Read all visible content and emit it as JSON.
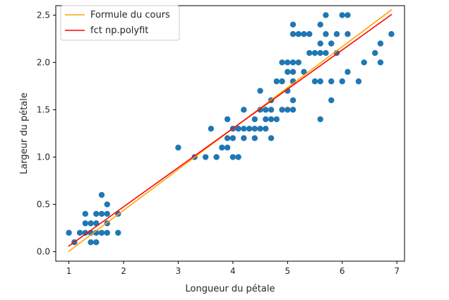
{
  "chart_data": {
    "type": "scatter",
    "xlabel": "Longueur du pétale",
    "ylabel": "Largeur du pétale",
    "xlim": [
      0.76,
      7.14
    ],
    "ylim": [
      -0.1,
      2.6
    ],
    "xticks": [
      1,
      2,
      3,
      4,
      5,
      6,
      7
    ],
    "yticks": [
      0.0,
      0.5,
      1.0,
      1.5,
      2.0,
      2.5
    ],
    "xtick_labels": [
      "1",
      "2",
      "3",
      "4",
      "5",
      "6",
      "7"
    ],
    "ytick_labels": [
      "0.0",
      "0.5",
      "1.0",
      "1.5",
      "2.0",
      "2.5"
    ],
    "grid": false,
    "legend_position": "top-left",
    "colors": {
      "scatter": "#1f77b4",
      "cours": "#ffa500",
      "polyfit": "#ff0000"
    },
    "scatter": {
      "points": [
        [
          1.0,
          0.2
        ],
        [
          1.1,
          0.1
        ],
        [
          1.2,
          0.2
        ],
        [
          1.3,
          0.2
        ],
        [
          1.3,
          0.3
        ],
        [
          1.3,
          0.4
        ],
        [
          1.4,
          0.1
        ],
        [
          1.4,
          0.2
        ],
        [
          1.4,
          0.3
        ],
        [
          1.5,
          0.1
        ],
        [
          1.5,
          0.2
        ],
        [
          1.5,
          0.3
        ],
        [
          1.5,
          0.4
        ],
        [
          1.6,
          0.2
        ],
        [
          1.6,
          0.4
        ],
        [
          1.6,
          0.6
        ],
        [
          1.7,
          0.2
        ],
        [
          1.7,
          0.3
        ],
        [
          1.7,
          0.4
        ],
        [
          1.7,
          0.5
        ],
        [
          1.9,
          0.2
        ],
        [
          1.9,
          0.4
        ],
        [
          3.0,
          1.1
        ],
        [
          3.3,
          1.0
        ],
        [
          3.5,
          1.0
        ],
        [
          3.6,
          1.3
        ],
        [
          3.7,
          1.0
        ],
        [
          3.8,
          1.1
        ],
        [
          3.9,
          1.1
        ],
        [
          3.9,
          1.2
        ],
        [
          3.9,
          1.4
        ],
        [
          4.0,
          1.0
        ],
        [
          4.0,
          1.2
        ],
        [
          4.0,
          1.3
        ],
        [
          4.1,
          1.0
        ],
        [
          4.1,
          1.3
        ],
        [
          4.2,
          1.2
        ],
        [
          4.2,
          1.3
        ],
        [
          4.2,
          1.5
        ],
        [
          4.3,
          1.3
        ],
        [
          4.4,
          1.2
        ],
        [
          4.4,
          1.3
        ],
        [
          4.4,
          1.4
        ],
        [
          4.5,
          1.3
        ],
        [
          4.5,
          1.5
        ],
        [
          4.5,
          1.7
        ],
        [
          4.6,
          1.3
        ],
        [
          4.6,
          1.4
        ],
        [
          4.6,
          1.5
        ],
        [
          4.7,
          1.2
        ],
        [
          4.7,
          1.4
        ],
        [
          4.7,
          1.5
        ],
        [
          4.7,
          1.6
        ],
        [
          4.8,
          1.4
        ],
        [
          4.8,
          1.8
        ],
        [
          4.9,
          1.5
        ],
        [
          4.9,
          1.8
        ],
        [
          4.9,
          2.0
        ],
        [
          5.0,
          1.5
        ],
        [
          5.0,
          1.7
        ],
        [
          5.0,
          1.9
        ],
        [
          5.0,
          2.0
        ],
        [
          5.1,
          1.5
        ],
        [
          5.1,
          1.6
        ],
        [
          5.1,
          1.8
        ],
        [
          5.1,
          1.9
        ],
        [
          5.1,
          2.0
        ],
        [
          5.1,
          2.3
        ],
        [
          5.1,
          2.4
        ],
        [
          5.2,
          2.0
        ],
        [
          5.2,
          2.3
        ],
        [
          5.3,
          1.9
        ],
        [
          5.3,
          2.3
        ],
        [
          5.4,
          2.1
        ],
        [
          5.4,
          2.3
        ],
        [
          5.5,
          1.8
        ],
        [
          5.5,
          2.1
        ],
        [
          5.6,
          1.4
        ],
        [
          5.6,
          1.8
        ],
        [
          5.6,
          2.1
        ],
        [
          5.6,
          2.2
        ],
        [
          5.6,
          2.4
        ],
        [
          5.7,
          2.1
        ],
        [
          5.7,
          2.3
        ],
        [
          5.7,
          2.5
        ],
        [
          5.8,
          1.6
        ],
        [
          5.8,
          1.8
        ],
        [
          5.8,
          2.2
        ],
        [
          5.9,
          2.1
        ],
        [
          5.9,
          2.3
        ],
        [
          6.0,
          1.8
        ],
        [
          6.0,
          2.5
        ],
        [
          6.1,
          1.9
        ],
        [
          6.1,
          2.3
        ],
        [
          6.1,
          2.5
        ],
        [
          6.3,
          1.8
        ],
        [
          6.4,
          2.0
        ],
        [
          6.6,
          2.1
        ],
        [
          6.7,
          2.0
        ],
        [
          6.7,
          2.2
        ],
        [
          6.9,
          2.3
        ]
      ]
    },
    "series": [
      {
        "name": "Formule du cours",
        "x": [
          1.0,
          6.9
        ],
        "y": [
          0.005,
          2.555
        ]
      },
      {
        "name": "fct np.polyfit",
        "x": [
          1.0,
          6.9
        ],
        "y": [
          0.06,
          2.505
        ]
      }
    ]
  }
}
